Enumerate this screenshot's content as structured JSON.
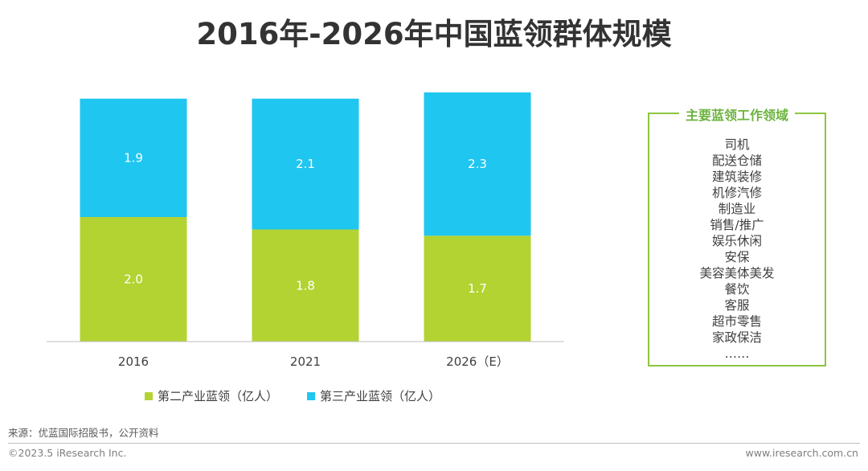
{
  "title": "2016年-2026年中国蓝领群体规模",
  "colors": {
    "secondary": "#B3D333",
    "tertiary": "#1FC6F0",
    "box_border": "#8CC63F",
    "box_title": "#6DB33F"
  },
  "chart_data": {
    "type": "bar",
    "stacked": true,
    "categories": [
      "2016",
      "2021",
      "2026（E）"
    ],
    "series": [
      {
        "name": "第二产业蓝领（亿人）",
        "values": [
          2.0,
          1.8,
          1.7
        ],
        "value_labels": [
          "2.0",
          "1.8",
          "1.7"
        ],
        "color": "#B3D333"
      },
      {
        "name": "第三产业蓝领（亿人）",
        "values": [
          1.9,
          2.1,
          2.3
        ],
        "value_labels": [
          "1.9",
          "2.1",
          "2.3"
        ],
        "color": "#1FC6F0"
      }
    ],
    "ylim": [
      0,
      4.0
    ],
    "grid": false,
    "legend_position": "bottom"
  },
  "legend": {
    "secondary_label": "第二产业蓝领（亿人）",
    "tertiary_label": "第三产业蓝领（亿人）"
  },
  "sidebox": {
    "title": "主要蓝领工作领域",
    "items": [
      "司机",
      "配送仓储",
      "建筑装修",
      "机修汽修",
      "制造业",
      "销售/推广",
      "娱乐休闲",
      "安保",
      "美容美体美发",
      "餐饮",
      "客服",
      "超市零售",
      "家政保洁",
      "……"
    ]
  },
  "footer": {
    "source": "来源：优蓝国际招股书，公开资料",
    "copyright": "©2023.5 iResearch Inc.",
    "website": "www.iresearch.com.cn"
  }
}
